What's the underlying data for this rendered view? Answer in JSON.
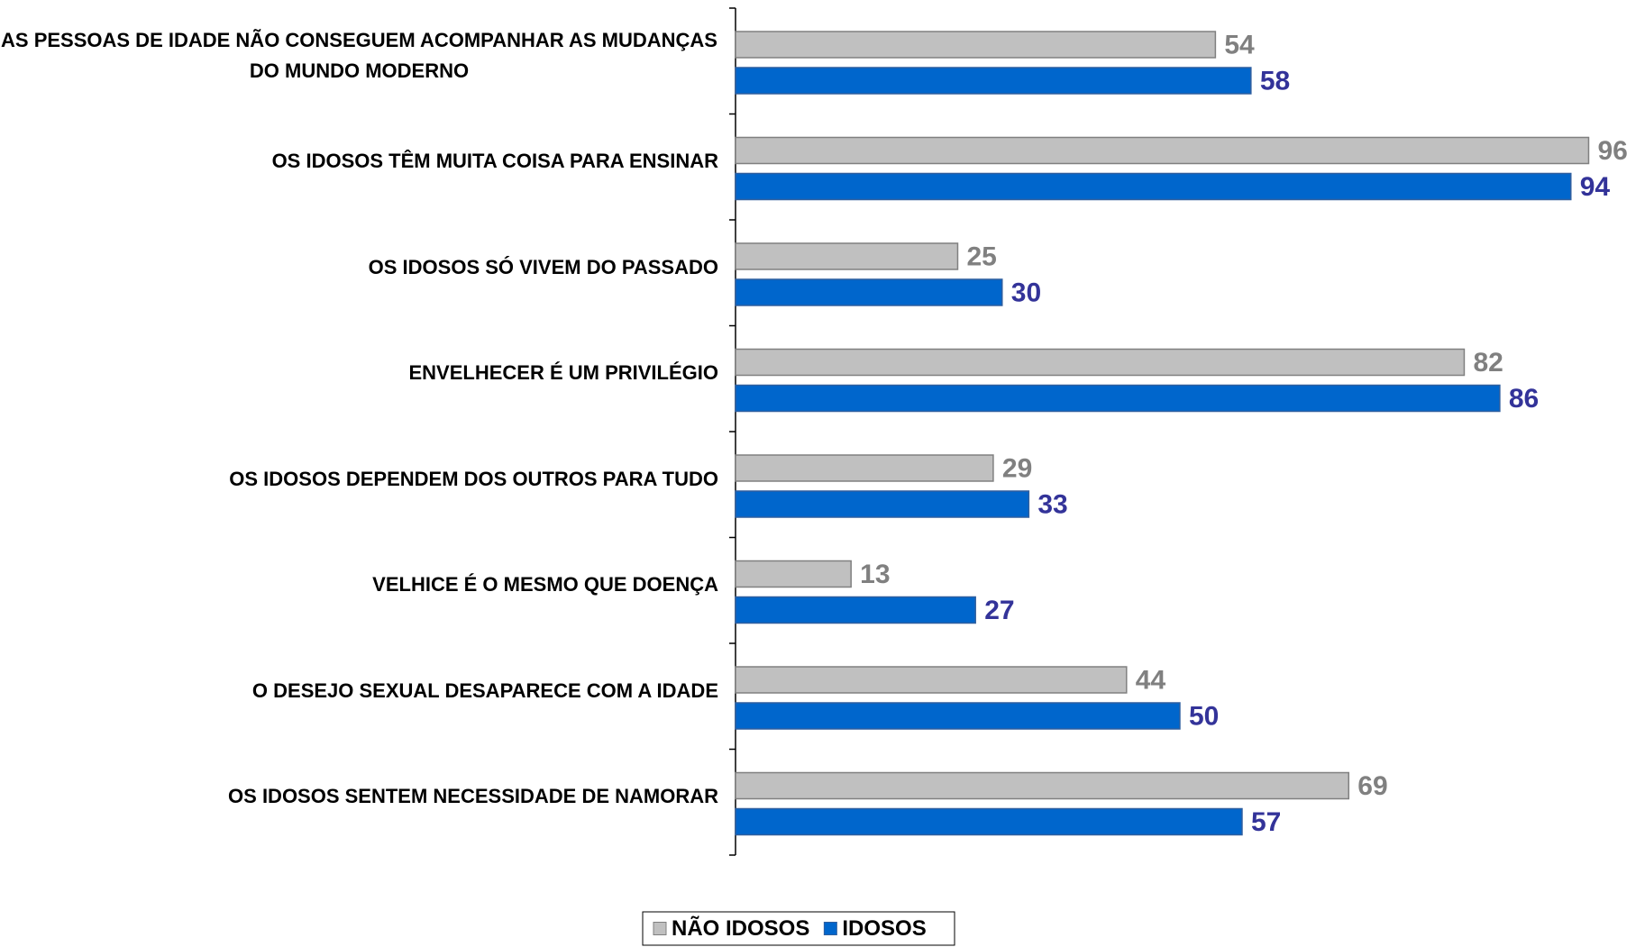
{
  "chart_data": {
    "type": "bar",
    "orientation": "horizontal",
    "categories": [
      "AS PESSOAS DE IDADE NÃO CONSEGUEM ACOMPANHAR AS MUDANÇAS DO MUNDO MODERNO",
      "OS IDOSOS TÊM MUITA COISA PARA ENSINAR",
      "OS IDOSOS SÓ VIVEM DO PASSADO",
      "ENVELHECER É UM PRIVILÉGIO",
      "OS IDOSOS DEPENDEM DOS OUTROS PARA TUDO",
      "VELHICE É O MESMO QUE DOENÇA",
      "O DESEJO SEXUAL DESAPARECE COM A IDADE",
      "OS IDOSOS SENTEM NECESSIDADE DE NAMORAR"
    ],
    "series": [
      {
        "name": "NÃO IDOSOS",
        "color": "#c0c0c0",
        "label_color": "#808080",
        "values": [
          54,
          96,
          25,
          82,
          29,
          13,
          44,
          69
        ]
      },
      {
        "name": "IDOSOS",
        "color": "#0066cc",
        "label_color": "#333399",
        "values": [
          58,
          94,
          30,
          86,
          33,
          27,
          50,
          57
        ]
      }
    ],
    "xlim": [
      0,
      100
    ],
    "legend": "bottom"
  }
}
